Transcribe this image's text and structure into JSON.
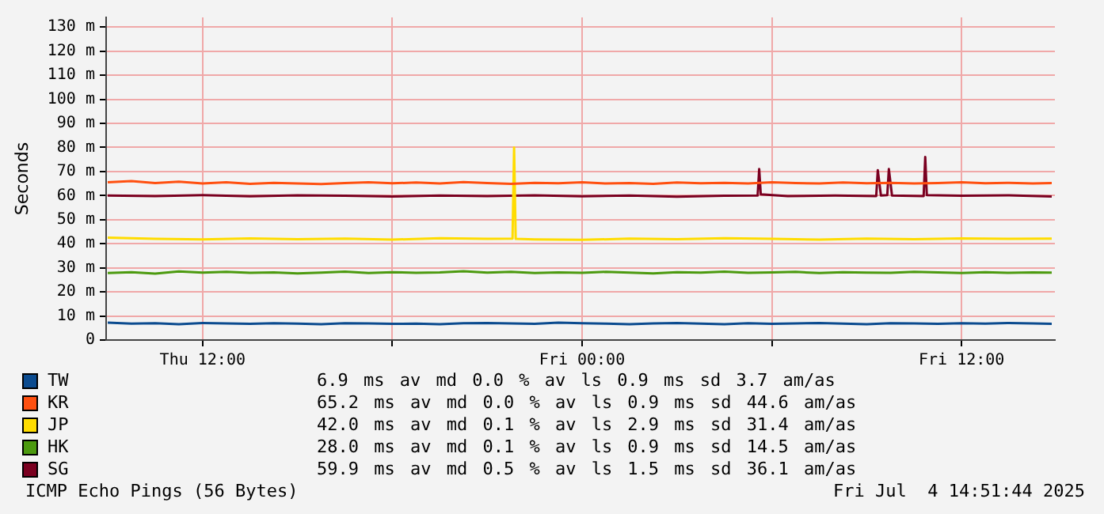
{
  "chart_data": {
    "type": "line",
    "ylabel": "Seconds",
    "legend": "bottom",
    "grid": true,
    "x": [
      "2025-07-03T09:00",
      "2025-07-03T09:45",
      "2025-07-03T10:30",
      "2025-07-03T11:15",
      "2025-07-03T12:00",
      "2025-07-03T12:45",
      "2025-07-03T13:30",
      "2025-07-03T14:15",
      "2025-07-03T15:00",
      "2025-07-03T15:45",
      "2025-07-03T16:30",
      "2025-07-03T17:15",
      "2025-07-03T18:00",
      "2025-07-03T18:45",
      "2025-07-03T19:30",
      "2025-07-03T20:15",
      "2025-07-03T21:00",
      "2025-07-03T21:45",
      "2025-07-03T22:30",
      "2025-07-03T23:15",
      "2025-07-04T00:00",
      "2025-07-04T00:45",
      "2025-07-04T01:30",
      "2025-07-04T02:15",
      "2025-07-04T03:00",
      "2025-07-04T03:45",
      "2025-07-04T04:30",
      "2025-07-04T05:15",
      "2025-07-04T06:00",
      "2025-07-04T06:45",
      "2025-07-04T07:30",
      "2025-07-04T08:15",
      "2025-07-04T09:00",
      "2025-07-04T09:45",
      "2025-07-04T10:30",
      "2025-07-04T11:15",
      "2025-07-04T12:00",
      "2025-07-04T12:45",
      "2025-07-04T13:30",
      "2025-07-04T14:15",
      "2025-07-04T14:51"
    ],
    "xlim": [
      "2025-07-03T08:57",
      "2025-07-04T14:57"
    ],
    "xticks": [
      {
        "value": "2025-07-03T12:00",
        "label": "Thu 12:00"
      },
      {
        "value": "2025-07-03T18:00",
        "label": null
      },
      {
        "value": "2025-07-04T00:00",
        "label": "Fri 00:00"
      },
      {
        "value": "2025-07-04T06:00",
        "label": null
      },
      {
        "value": "2025-07-04T12:00",
        "label": "Fri 12:00"
      }
    ],
    "ylim": [
      0,
      134
    ],
    "yticks": [
      0,
      {
        "value": 10,
        "label": "10 m"
      },
      {
        "value": 20,
        "label": "20 m"
      },
      {
        "value": 30,
        "label": "30 m"
      },
      {
        "value": 40,
        "label": "40 m"
      },
      {
        "value": 50,
        "label": "50 m"
      },
      {
        "value": 60,
        "label": "60 m"
      },
      {
        "value": 70,
        "label": "70 m"
      },
      {
        "value": 80,
        "label": "80 m"
      },
      {
        "value": 90,
        "label": "90 m"
      },
      {
        "value": 100,
        "label": "100 m"
      },
      {
        "value": 110,
        "label": "110 m"
      },
      {
        "value": 120,
        "label": "120 m"
      },
      {
        "value": 130,
        "label": "130 m"
      }
    ],
    "series": [
      {
        "name": "TW",
        "color": "#0b4b8f",
        "values": [
          7.2,
          6.8,
          7.0,
          6.6,
          7.1,
          6.9,
          6.7,
          7.0,
          6.8,
          6.6,
          7.0,
          6.9,
          6.7,
          6.8,
          6.6,
          7.0,
          7.1,
          6.9,
          6.7,
          7.2,
          7.0,
          6.8,
          6.6,
          6.9,
          7.1,
          6.8,
          6.6,
          7.0,
          6.7,
          6.9,
          7.1,
          6.8,
          6.6,
          7.0,
          6.9,
          6.7,
          7.0,
          6.8,
          7.1,
          6.9,
          6.7
        ]
      },
      {
        "name": "KR",
        "color": "#ff5010",
        "values": [
          65.5,
          66.0,
          65.2,
          65.8,
          65.0,
          65.5,
          64.9,
          65.3,
          65.0,
          64.8,
          65.2,
          65.5,
          65.1,
          65.4,
          65.0,
          65.6,
          65.2,
          64.9,
          65.3,
          65.1,
          65.5,
          65.0,
          65.2,
          64.9,
          65.4,
          65.1,
          65.3,
          65.0,
          65.5,
          65.2,
          65.0,
          65.4,
          65.1,
          65.3,
          65.0,
          65.2,
          65.5,
          65.1,
          65.3,
          65.0,
          65.2
        ]
      },
      {
        "name": "JP",
        "color": "#ffdc00",
        "x": [
          "2025-07-03T09:00",
          "2025-07-03T10:30",
          "2025-07-03T12:00",
          "2025-07-03T13:30",
          "2025-07-03T15:00",
          "2025-07-03T16:30",
          "2025-07-03T18:00",
          "2025-07-03T19:30",
          "2025-07-03T21:00",
          "2025-07-03T21:48",
          "2025-07-03T21:51",
          "2025-07-03T21:54",
          "2025-07-03T22:30",
          "2025-07-04T00:00",
          "2025-07-04T01:30",
          "2025-07-04T03:00",
          "2025-07-04T04:30",
          "2025-07-04T06:00",
          "2025-07-04T07:30",
          "2025-07-04T09:00",
          "2025-07-04T10:30",
          "2025-07-04T12:00",
          "2025-07-04T13:30",
          "2025-07-04T14:51"
        ],
        "values": [
          42.5,
          42.0,
          41.8,
          42.2,
          41.9,
          42.1,
          41.7,
          42.3,
          42.0,
          42.1,
          80.0,
          42.0,
          41.8,
          41.6,
          42.1,
          41.9,
          42.3,
          42.0,
          41.7,
          42.1,
          41.9,
          42.2,
          42.0,
          42.1
        ]
      },
      {
        "name": "HK",
        "color": "#4c9a0f",
        "values": [
          27.8,
          28.2,
          27.6,
          28.5,
          28.0,
          28.3,
          27.9,
          28.1,
          27.7,
          28.0,
          28.4,
          27.8,
          28.2,
          27.9,
          28.1,
          28.6,
          28.0,
          28.3,
          27.8,
          28.1,
          27.9,
          28.3,
          28.0,
          27.7,
          28.2,
          28.0,
          28.4,
          27.9,
          28.1,
          28.3,
          27.8,
          28.2,
          28.0,
          27.9,
          28.3,
          28.1,
          27.8,
          28.2,
          27.9,
          28.1,
          28.0
        ]
      },
      {
        "name": "SG",
        "color": "#7a0020",
        "x": [
          "2025-07-03T09:00",
          "2025-07-03T10:30",
          "2025-07-03T12:00",
          "2025-07-03T13:30",
          "2025-07-03T15:00",
          "2025-07-03T16:30",
          "2025-07-03T18:00",
          "2025-07-03T19:30",
          "2025-07-03T21:00",
          "2025-07-03T22:30",
          "2025-07-04T00:00",
          "2025-07-04T01:30",
          "2025-07-04T03:00",
          "2025-07-04T04:30",
          "2025-07-04T05:33",
          "2025-07-04T05:36",
          "2025-07-04T05:39",
          "2025-07-04T06:30",
          "2025-07-04T08:00",
          "2025-07-04T09:18",
          "2025-07-04T09:21",
          "2025-07-04T09:27",
          "2025-07-04T09:39",
          "2025-07-04T09:42",
          "2025-07-04T09:48",
          "2025-07-04T10:48",
          "2025-07-04T10:51",
          "2025-07-04T10:54",
          "2025-07-04T12:00",
          "2025-07-04T13:30",
          "2025-07-04T14:51"
        ],
        "values": [
          60.0,
          59.8,
          60.2,
          59.7,
          60.1,
          59.9,
          59.6,
          60.0,
          59.8,
          60.1,
          59.7,
          60.0,
          59.5,
          59.9,
          60.0,
          71.0,
          60.5,
          59.8,
          60.0,
          59.8,
          70.5,
          60.0,
          60.2,
          71.0,
          60.0,
          59.8,
          76.0,
          60.2,
          59.9,
          60.1,
          59.6
        ]
      }
    ],
    "annotations": [
      "6.9 ms av md 0.0 % av ls 0.9 ms sd 3.7 am/as",
      "65.2 ms av md 0.0 % av ls 0.9 ms sd 44.6 am/as",
      "42.0 ms av md 0.1 % av ls 2.9 ms sd 31.4 am/as",
      "28.0 ms av md 0.1 % av ls 0.9 ms sd 14.5 am/as",
      "59.9 ms av md 0.5 % av ls 1.5 ms sd 36.1 am/as",
      "ICMP Echo Pings (56 Bytes)",
      "Fri Jul  4 14:51:44 2025"
    ]
  }
}
